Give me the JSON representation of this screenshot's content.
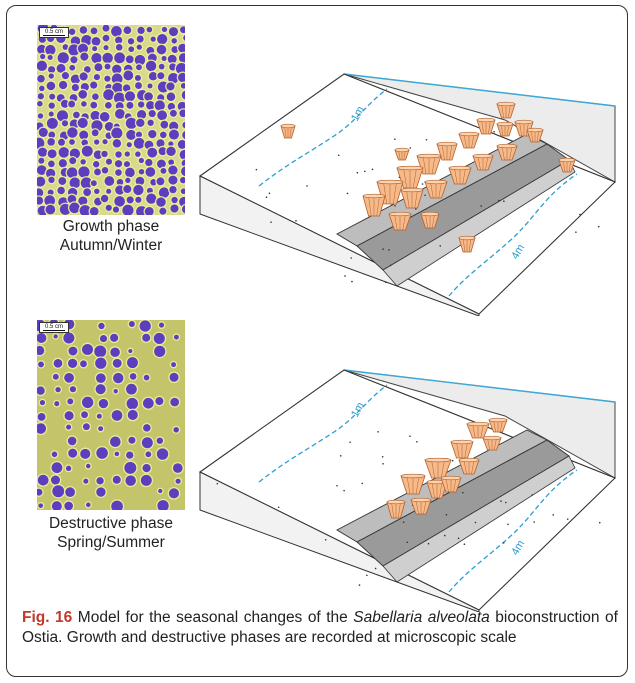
{
  "panels": [
    {
      "scale_label": "0.5 cm",
      "phase_title": "Growth phase",
      "phase_season": "Autumn/Winter",
      "depth_labels": [
        "1m",
        "4m"
      ]
    },
    {
      "scale_label": "0.5 cm",
      "phase_title": "Destructive phase",
      "phase_season": "Spring/Summer",
      "depth_labels": [
        "1m",
        "4m"
      ]
    }
  ],
  "caption": {
    "label": "Fig. 16",
    "text_before": " Model for the seasonal changes of the ",
    "species": "Sabellaria alveolata",
    "text_after": " bioconstruction of Ostia. Growth and destructive phases are recorded at microscopic scale"
  },
  "colors": {
    "tube_fill": "#f5b98a",
    "tube_stroke": "#b5602a",
    "reef_gray": "#9a9a9a",
    "water_line": "#3fa7d6",
    "isobath": "#2b9fd1",
    "tube_opening": "#5b3fbf",
    "cement": "#cfd07a"
  }
}
